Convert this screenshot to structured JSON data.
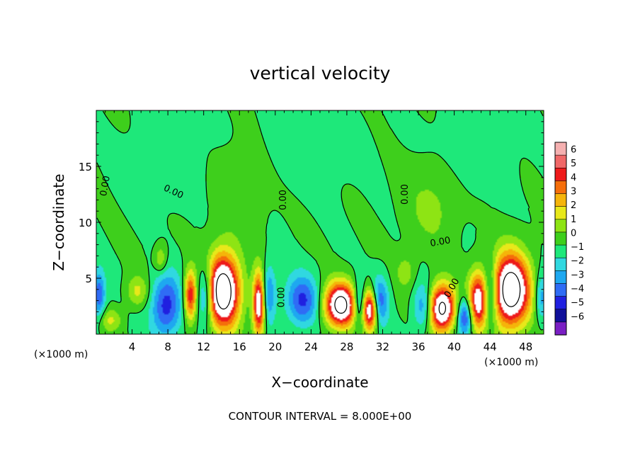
{
  "chart_data": {
    "type": "heatmap",
    "title": "vertical velocity",
    "xlabel": "X−coordinate",
    "ylabel": "Z−coordinate",
    "x_unit_left": "(×1000 m)",
    "x_unit_right": "(×1000 m)",
    "xlim": [
      0,
      50
    ],
    "ylim": [
      0,
      20
    ],
    "x_ticks": [
      "4",
      "8",
      "12",
      "16",
      "20",
      "24",
      "28",
      "32",
      "36",
      "40",
      "44",
      "48"
    ],
    "x_tick_values": [
      4,
      8,
      12,
      16,
      20,
      24,
      28,
      32,
      36,
      40,
      44,
      48
    ],
    "y_ticks": [
      "5",
      "10",
      "15"
    ],
    "y_tick_values": [
      5,
      10,
      15
    ],
    "colorbar": {
      "min": -6,
      "max": 6,
      "labels": [
        "6",
        "5",
        "4",
        "3",
        "2",
        "1",
        "0",
        "−1",
        "−2",
        "−3",
        "−4",
        "−5",
        "−6"
      ],
      "label_values": [
        6,
        5,
        4,
        3,
        2,
        1,
        0,
        -1,
        -2,
        -3,
        -4,
        -5,
        -6
      ]
    },
    "contour_labels": [
      "0.00",
      "0.00",
      "0.00",
      "0.00",
      "0.00",
      "0.00",
      "0.00"
    ],
    "footer": "CONTOUR INTERVAL = 8.000E+00",
    "field_blobs": [
      {
        "x": 14.2,
        "z": 3.9,
        "sx": 1.3,
        "sz": 2.3,
        "a": 10
      },
      {
        "x": 18.2,
        "z": 2.7,
        "sx": 0.5,
        "sz": 2.0,
        "a": 8
      },
      {
        "x": 27.3,
        "z": 2.6,
        "sx": 1.3,
        "sz": 1.4,
        "a": 9
      },
      {
        "x": 30.6,
        "z": 2.2,
        "sx": 0.6,
        "sz": 1.3,
        "a": 8
      },
      {
        "x": 38.6,
        "z": 2.3,
        "sx": 1.1,
        "sz": 1.5,
        "a": 9
      },
      {
        "x": 42.7,
        "z": 3.0,
        "sx": 0.8,
        "sz": 1.8,
        "a": 7
      },
      {
        "x": 46.3,
        "z": 3.9,
        "sx": 1.5,
        "sz": 2.3,
        "a": 10
      },
      {
        "x": 10.5,
        "z": 3.4,
        "sx": 0.5,
        "sz": 1.6,
        "a": 6
      },
      {
        "x": 4.6,
        "z": 3.8,
        "sx": 0.9,
        "sz": 1.0,
        "a": 2.3
      },
      {
        "x": 1.6,
        "z": 1.3,
        "sx": 0.9,
        "sz": 0.7,
        "a": 2.0
      },
      {
        "x": 7.2,
        "z": 6.7,
        "sx": 0.5,
        "sz": 0.9,
        "a": 2.2
      },
      {
        "x": 34.6,
        "z": 5.6,
        "sx": 0.8,
        "sz": 1.1,
        "a": 1.5
      },
      {
        "x": 37.5,
        "z": 11.5,
        "sx": 2.0,
        "sz": 2.6,
        "a": 1.3
      },
      {
        "x": 16.0,
        "z": 12.5,
        "sx": 2.0,
        "sz": 2.6,
        "a": 0.9
      },
      {
        "x": 7.8,
        "z": 2.5,
        "sx": 1.2,
        "sz": 2.0,
        "a": -4.6
      },
      {
        "x": 12.2,
        "z": 3.6,
        "sx": 0.6,
        "sz": 1.8,
        "a": -4.0
      },
      {
        "x": 19.2,
        "z": 3.6,
        "sx": 0.6,
        "sz": 1.8,
        "a": -3.5
      },
      {
        "x": 23.0,
        "z": 3.0,
        "sx": 1.3,
        "sz": 1.6,
        "a": -4.2
      },
      {
        "x": 29.4,
        "z": 2.7,
        "sx": 0.5,
        "sz": 1.4,
        "a": -4.0
      },
      {
        "x": 31.6,
        "z": 3.0,
        "sx": 0.7,
        "sz": 1.5,
        "a": -4.0
      },
      {
        "x": 36.6,
        "z": 2.4,
        "sx": 0.8,
        "sz": 1.5,
        "a": -3.5
      },
      {
        "x": 41.2,
        "z": 1.6,
        "sx": 0.6,
        "sz": 1.2,
        "a": -5.0
      },
      {
        "x": 44.0,
        "z": 3.5,
        "sx": 0.6,
        "sz": 2.0,
        "a": -4.0
      },
      {
        "x": 0.3,
        "z": 3.5,
        "sx": 0.5,
        "sz": 1.5,
        "a": -4.0
      },
      {
        "x": 49.7,
        "z": 3.2,
        "sx": 0.5,
        "sz": 1.5,
        "a": -3.0
      },
      {
        "x": 8.0,
        "z": 15.0,
        "sx": 3.0,
        "sz": 2.6,
        "a": -0.6
      },
      {
        "x": 42.0,
        "z": 16.0,
        "sx": 3.0,
        "sz": 2.6,
        "a": -0.6
      },
      {
        "x": 24.0,
        "z": 16.5,
        "sx": 3.5,
        "sz": 2.6,
        "a": -0.5
      }
    ]
  }
}
